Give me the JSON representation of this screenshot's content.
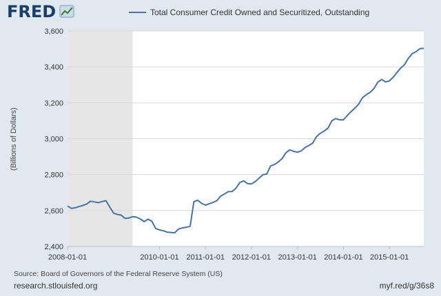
{
  "logo": {
    "text": "FRED",
    "color": "#1a3e6e"
  },
  "legend_label": "Total Consumer Credit Owned and Securitized, Outstanding",
  "source": "Source: Board of Governors of the Federal Reserve System (US)",
  "footer_left": "research.stlouisfed.org",
  "footer_right": "myf.red/g/36s8",
  "colors": {
    "series": "#4572a7",
    "background": "#e1e9f0",
    "plot": "#ffffff",
    "recession": "#e6e6e6"
  },
  "chart_data": {
    "type": "line",
    "title": "",
    "xlabel": "",
    "ylabel": "(Billions of Dollars)",
    "ylim": [
      2400,
      3600
    ],
    "xlim": [
      "2008-01-01",
      "2015-10-01"
    ],
    "grid": "horizontal",
    "legend": "top-center",
    "y_ticks": [
      {
        "value": 2400,
        "label": "2,400"
      },
      {
        "value": 2600,
        "label": "2,600"
      },
      {
        "value": 2800,
        "label": "2,800"
      },
      {
        "value": 3000,
        "label": "3,000"
      },
      {
        "value": 3200,
        "label": "3,200"
      },
      {
        "value": 3400,
        "label": "3,400"
      },
      {
        "value": 3600,
        "label": "3,600"
      }
    ],
    "x_ticks": [
      {
        "date": "2008-01-01",
        "label": "2008-01-01"
      },
      {
        "date": "2010-01-01",
        "label": "2010-01-01"
      },
      {
        "date": "2011-01-01",
        "label": "2011-01-01"
      },
      {
        "date": "2012-01-01",
        "label": "2012-01-01"
      },
      {
        "date": "2013-01-01",
        "label": "2013-01-01"
      },
      {
        "date": "2014-01-01",
        "label": "2014-01-01"
      },
      {
        "date": "2015-01-01",
        "label": "2015-01-01"
      }
    ],
    "shaded_periods": [
      {
        "start": "2008-01-01",
        "end": "2009-06-01"
      }
    ],
    "series": [
      {
        "name": "Total Consumer Credit Owned and Securitized, Outstanding",
        "x": [
          "2008-01",
          "2008-02",
          "2008-03",
          "2008-04",
          "2008-05",
          "2008-06",
          "2008-07",
          "2008-08",
          "2008-09",
          "2008-10",
          "2008-11",
          "2008-12",
          "2009-01",
          "2009-02",
          "2009-03",
          "2009-04",
          "2009-05",
          "2009-06",
          "2009-07",
          "2009-08",
          "2009-09",
          "2009-10",
          "2009-11",
          "2009-12",
          "2010-01",
          "2010-02",
          "2010-03",
          "2010-04",
          "2010-05",
          "2010-06",
          "2010-07",
          "2010-08",
          "2010-09",
          "2010-10",
          "2010-11",
          "2010-12",
          "2011-01",
          "2011-02",
          "2011-03",
          "2011-04",
          "2011-05",
          "2011-06",
          "2011-07",
          "2011-08",
          "2011-09",
          "2011-10",
          "2011-11",
          "2011-12",
          "2012-01",
          "2012-02",
          "2012-03",
          "2012-04",
          "2012-05",
          "2012-06",
          "2012-07",
          "2012-08",
          "2012-09",
          "2012-10",
          "2012-11",
          "2012-12",
          "2013-01",
          "2013-02",
          "2013-03",
          "2013-04",
          "2013-05",
          "2013-06",
          "2013-07",
          "2013-08",
          "2013-09",
          "2013-10",
          "2013-11",
          "2013-12",
          "2014-01",
          "2014-02",
          "2014-03",
          "2014-04",
          "2014-05",
          "2014-06",
          "2014-07",
          "2014-08",
          "2014-09",
          "2014-10",
          "2014-11",
          "2014-12",
          "2015-01",
          "2015-02",
          "2015-03",
          "2015-04",
          "2015-05",
          "2015-06",
          "2015-07",
          "2015-08",
          "2015-09",
          "2015-10"
        ],
        "y": [
          2625,
          2612,
          2615,
          2622,
          2628,
          2636,
          2652,
          2648,
          2644,
          2650,
          2655,
          2620,
          2585,
          2578,
          2575,
          2556,
          2558,
          2566,
          2563,
          2553,
          2538,
          2552,
          2540,
          2500,
          2492,
          2487,
          2480,
          2478,
          2476,
          2497,
          2503,
          2507,
          2512,
          2650,
          2657,
          2640,
          2630,
          2638,
          2645,
          2655,
          2680,
          2692,
          2705,
          2706,
          2725,
          2756,
          2765,
          2750,
          2748,
          2762,
          2780,
          2800,
          2803,
          2848,
          2856,
          2870,
          2890,
          2922,
          2938,
          2930,
          2925,
          2933,
          2950,
          2962,
          2975,
          3012,
          3030,
          3043,
          3060,
          3100,
          3112,
          3105,
          3105,
          3130,
          3150,
          3170,
          3192,
          3228,
          3245,
          3258,
          3280,
          3315,
          3330,
          3316,
          3322,
          3343,
          3368,
          3394,
          3412,
          3448,
          3474,
          3485,
          3502,
          3503
        ]
      }
    ]
  }
}
